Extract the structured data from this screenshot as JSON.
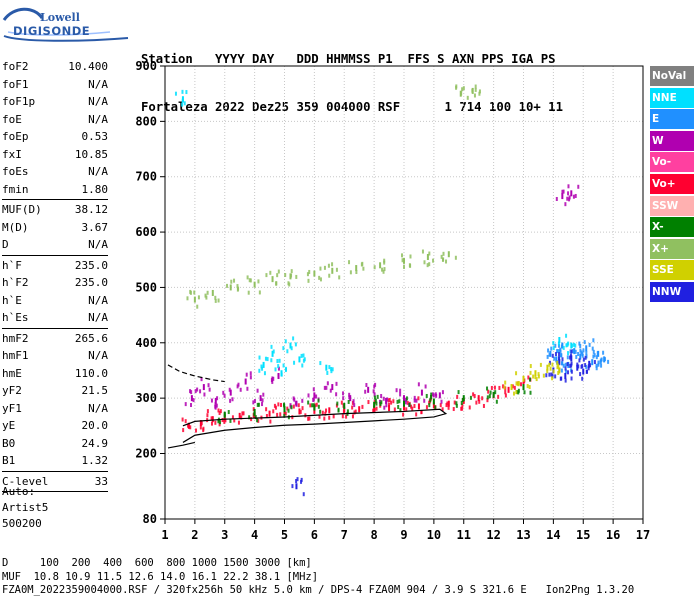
{
  "logo": {
    "line1": "Lowell",
    "line2": "DIGISONDE"
  },
  "header": {
    "row1": "Station   YYYY DAY   DDD HHMMSS P1  FFS S AXN PPS IGA PS",
    "row2": "Fortaleza 2022 Dez25 359 004000 RSF      1 714 100 10+ 11"
  },
  "params": [
    {
      "label": "foF2",
      "value": "10.400"
    },
    {
      "label": "foF1",
      "value": "N/A"
    },
    {
      "label": "foF1p",
      "value": "N/A"
    },
    {
      "label": "foE",
      "value": "N/A"
    },
    {
      "label": "foEp",
      "value": "0.53"
    },
    {
      "label": "fxI",
      "value": "10.85"
    },
    {
      "label": "foEs",
      "value": "N/A"
    },
    {
      "label": "fmin",
      "value": "1.80"
    },
    {
      "sep": true
    },
    {
      "label": "MUF(D)",
      "value": "38.12"
    },
    {
      "label": "M(D)",
      "value": "3.67"
    },
    {
      "label": "D",
      "value": "N/A"
    },
    {
      "sep": true
    },
    {
      "label": "h`F",
      "value": "235.0"
    },
    {
      "label": "h`F2",
      "value": "235.0"
    },
    {
      "label": "h`E",
      "value": "N/A"
    },
    {
      "label": "h`Es",
      "value": "N/A"
    },
    {
      "sep": true
    },
    {
      "label": "hmF2",
      "value": "265.6"
    },
    {
      "label": "hmF1",
      "value": "N/A"
    },
    {
      "label": "hmE",
      "value": "110.0"
    },
    {
      "label": "yF2",
      "value": "21.5"
    },
    {
      "label": "yF1",
      "value": "N/A"
    },
    {
      "label": "yE",
      "value": "20.0"
    },
    {
      "label": "B0",
      "value": "24.9"
    },
    {
      "label": "B1",
      "value": "1.32"
    },
    {
      "sep": true
    },
    {
      "label": "C-level",
      "value": "33"
    },
    {
      "sep": true
    }
  ],
  "auto": {
    "line1": "Auto:",
    "line2": "Artist5",
    "line3": "500200"
  },
  "footer": {
    "line1": "D     100  200  400  600  800 1000 1500 3000 [km]",
    "line2": "MUF  10.8 10.9 11.5 12.6 14.0 16.1 22.2 38.1 [MHz]",
    "line3": "FZA0M_2022359004000.RSF / 320fx256h 50 kHz 5.0 km / DPS-4 FZA0M 904 / 3.9 S 321.6 E   Ion2Png 1.3.20"
  },
  "legend": [
    {
      "label": "NoVal",
      "color": "#808080",
      "text": "#ffffff"
    },
    {
      "label": "NNE",
      "color": "#00e0ff",
      "text": "#ffffff"
    },
    {
      "label": "E",
      "color": "#2090ff",
      "text": "#ffffff"
    },
    {
      "label": "W",
      "color": "#b000b0",
      "text": "#ffffff"
    },
    {
      "label": "Vo-",
      "color": "#ff40a0",
      "text": "#ffffff"
    },
    {
      "label": "Vo+",
      "color": "#ff0030",
      "text": "#ffffff"
    },
    {
      "label": "SSW",
      "color": "#ffb0b0",
      "text": "#ffffff"
    },
    {
      "label": "X-",
      "color": "#008000",
      "text": "#ffffff"
    },
    {
      "label": "X+",
      "color": "#90c060",
      "text": "#ffffff"
    },
    {
      "label": "SSE",
      "color": "#d0d000",
      "text": "#ffffff"
    },
    {
      "label": "NNW",
      "color": "#2020e0",
      "text": "#ffffff"
    }
  ],
  "chart_data": {
    "type": "scatter",
    "xlim": [
      1,
      17
    ],
    "ylim": [
      80,
      900
    ],
    "xticks": [
      1,
      2,
      3,
      4,
      5,
      6,
      7,
      8,
      9,
      10,
      11,
      12,
      13,
      14,
      15,
      16,
      17
    ],
    "yticks": [
      80,
      200,
      300,
      400,
      500,
      600,
      700,
      800,
      900
    ],
    "grid": true,
    "series": [
      {
        "name": "Vo+",
        "color": "#ff0030",
        "x": [
          1.8,
          2.2,
          2.6,
          3.0,
          3.5,
          4.0,
          4.5,
          5.0,
          5.5,
          6.0,
          6.5,
          7.0,
          7.5,
          8.0,
          8.5,
          9.0,
          9.5,
          10.0,
          10.5,
          11.0,
          11.5,
          12.0,
          12.5,
          13.0
        ],
        "y": [
          250,
          255,
          262,
          265,
          268,
          270,
          272,
          274,
          276,
          277,
          278,
          279,
          280,
          281,
          282,
          283,
          285,
          287,
          290,
          295,
          300,
          305,
          315,
          330
        ]
      },
      {
        "name": "W",
        "color": "#b000b0",
        "x": [
          1.9,
          2.3,
          2.7,
          3.2,
          3.7,
          4.2,
          4.8,
          5.4,
          6.0,
          6.6,
          7.2,
          7.8,
          8.4,
          9.0,
          9.6,
          10.2,
          14.3,
          14.6
        ],
        "y": [
          300,
          320,
          295,
          310,
          330,
          300,
          340,
          290,
          305,
          320,
          300,
          315,
          295,
          300,
          310,
          305,
          665,
          670
        ]
      },
      {
        "name": "E",
        "color": "#2090ff",
        "x": [
          13.9,
          14.1,
          14.3,
          14.5,
          14.7,
          14.9,
          15.1,
          15.3,
          15.5,
          15.7
        ],
        "y": [
          380,
          370,
          395,
          360,
          385,
          375,
          390,
          365,
          380,
          370
        ]
      },
      {
        "name": "NNE",
        "color": "#00e0ff",
        "x": [
          4.3,
          4.6,
          4.9,
          5.2,
          5.5,
          6.4,
          1.6,
          14.2,
          14.6
        ],
        "y": [
          360,
          380,
          345,
          395,
          370,
          355,
          840,
          405,
          395
        ]
      },
      {
        "name": "NNW",
        "color": "#2020e0",
        "x": [
          14.0,
          14.2,
          14.4,
          14.6,
          14.8,
          15.0,
          15.2,
          5.4
        ],
        "y": [
          350,
          365,
          340,
          372,
          355,
          348,
          362,
          140
        ]
      },
      {
        "name": "X+",
        "color": "#90c060",
        "x": [
          2.0,
          2.6,
          3.2,
          4.0,
          4.6,
          5.2,
          6.0,
          6.6,
          7.4,
          8.2,
          9.0,
          9.8,
          10.5,
          10.9,
          11.3
        ],
        "y": [
          478,
          490,
          500,
          505,
          515,
          520,
          525,
          530,
          535,
          540,
          548,
          555,
          560,
          850,
          855
        ]
      },
      {
        "name": "X-",
        "color": "#008000",
        "x": [
          3.0,
          4.0,
          5.0,
          6.0,
          7.0,
          8.0,
          9.0,
          10.0,
          11.0,
          12.0,
          13.0
        ],
        "y": [
          270,
          275,
          280,
          283,
          286,
          288,
          290,
          294,
          300,
          306,
          320
        ]
      },
      {
        "name": "SSE",
        "color": "#d0d000",
        "x": [
          12.6,
          13.0,
          13.4,
          13.8,
          14.2
        ],
        "y": [
          320,
          335,
          345,
          355,
          350
        ]
      }
    ],
    "lines": [
      {
        "name": "profile-solid",
        "color": "#000000",
        "x": [
          1.6,
          2.0,
          3.0,
          4.0,
          5.0,
          6.0,
          7.0,
          8.0,
          9.0,
          10.0,
          10.4,
          10.2,
          9.0,
          7.0,
          5.0,
          3.0,
          2.0,
          1.6
        ],
        "y": [
          220,
          233,
          242,
          247,
          251,
          253,
          256,
          259,
          262,
          266,
          272,
          280,
          276,
          272,
          266,
          262,
          258,
          250
        ]
      },
      {
        "name": "profile-dashed",
        "color": "#000000",
        "x": [
          1.1,
          1.5,
          2.0,
          2.6,
          3.0
        ],
        "y": [
          360,
          348,
          340,
          333,
          330
        ]
      },
      {
        "name": "profile-low",
        "color": "#000000",
        "x": [
          1.1,
          1.6,
          2.0
        ],
        "y": [
          210,
          215,
          220
        ]
      }
    ]
  }
}
